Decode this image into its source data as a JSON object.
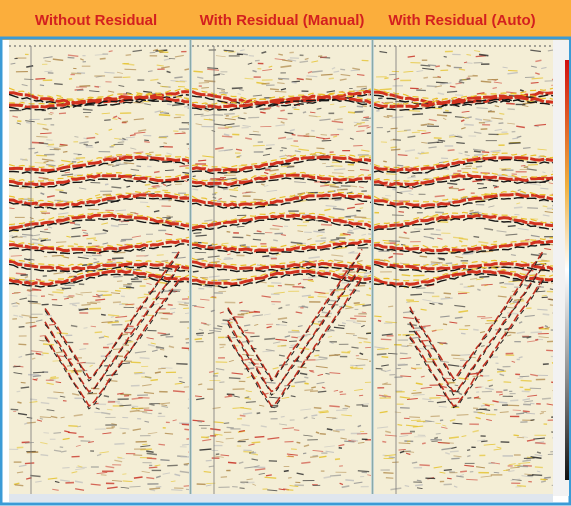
{
  "header": {
    "panels": [
      "Without Residual",
      "With Residual (Manual)",
      "With Residual (Auto)"
    ]
  }
}
